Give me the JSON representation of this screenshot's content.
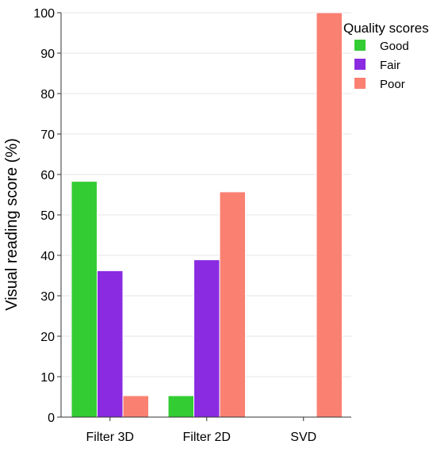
{
  "chart_data": {
    "type": "bar",
    "categories": [
      "Filter 3D",
      "Filter 2D",
      "SVD"
    ],
    "series": [
      {
        "name": "Good",
        "color": "#33cc33",
        "values": [
          58.3,
          5.3,
          0
        ]
      },
      {
        "name": "Fair",
        "color": "#8a2be2",
        "values": [
          36.2,
          38.9,
          0
        ]
      },
      {
        "name": "Poor",
        "color": "#fa8072",
        "values": [
          5.3,
          55.7,
          100
        ]
      }
    ],
    "title": "",
    "xlabel": "",
    "ylabel": "Visual reading score (%)",
    "ylim": [
      0,
      100
    ],
    "yticks": [
      0,
      10,
      20,
      30,
      40,
      50,
      60,
      70,
      80,
      90,
      100
    ],
    "grid": true,
    "legend": {
      "title": "Quality scores",
      "placement": "top-right"
    }
  }
}
